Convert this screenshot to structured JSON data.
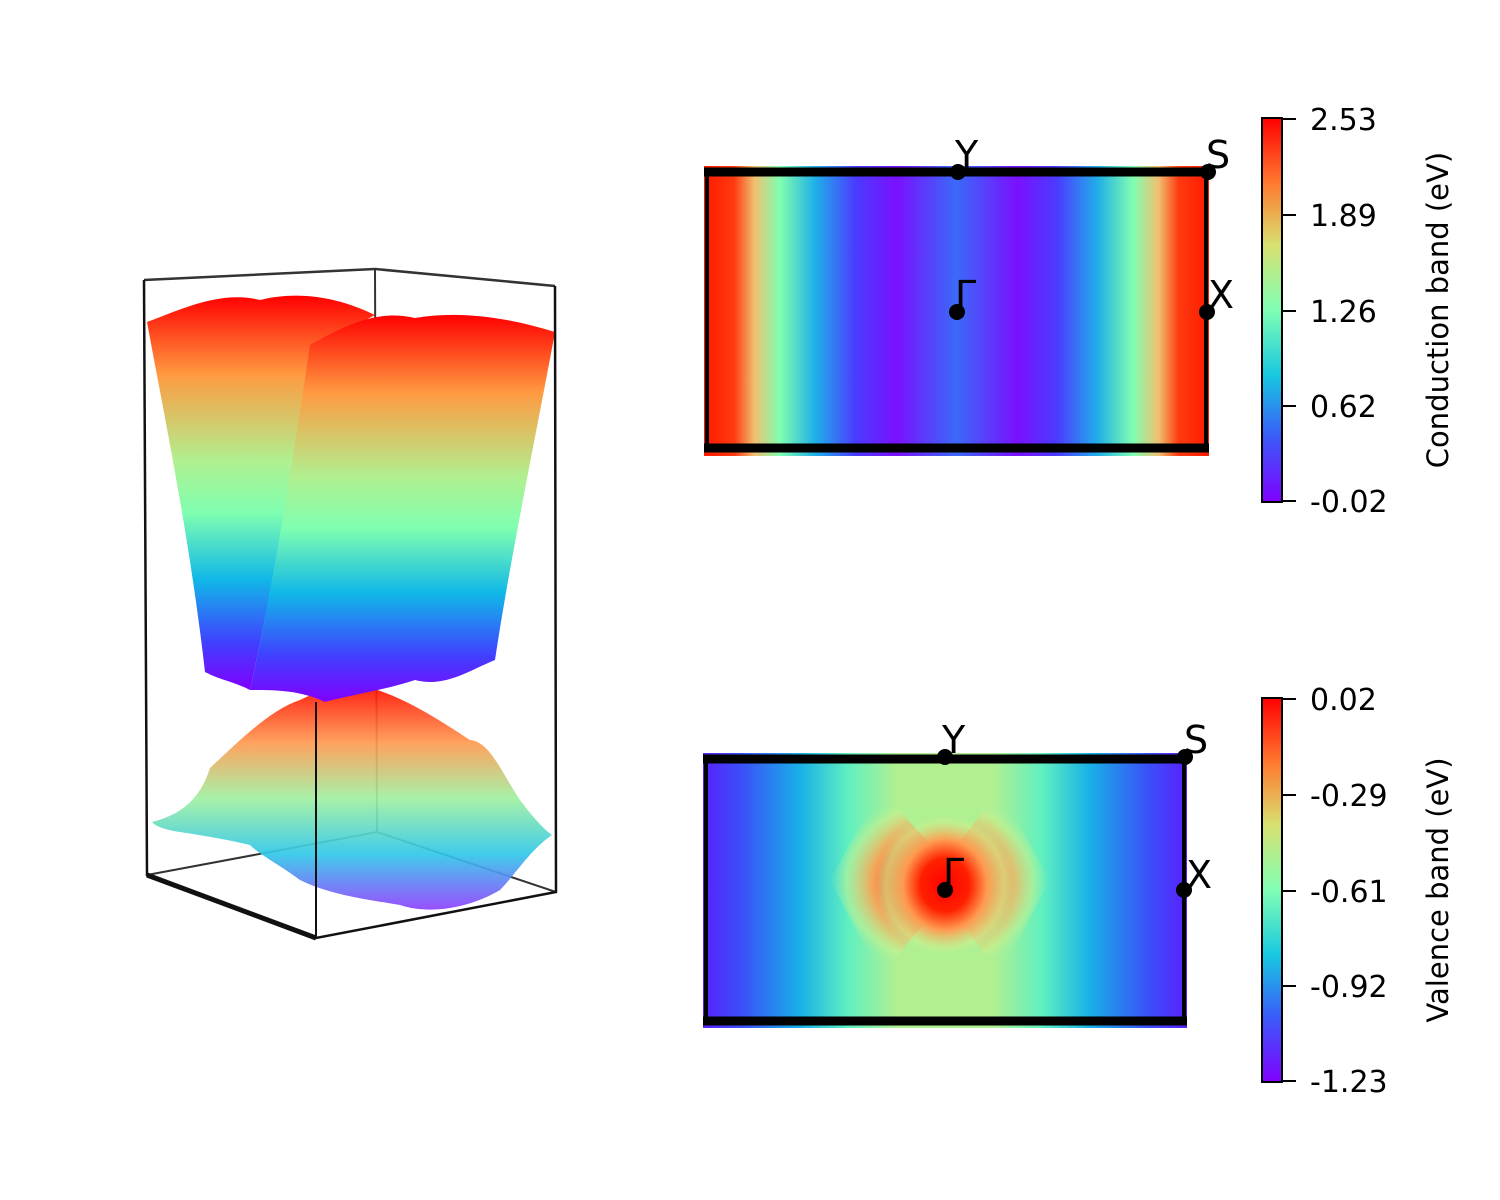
{
  "chart_data": [
    {
      "type": "surface3d",
      "description_panel": "left",
      "series": [
        {
          "colormap": "rainbow",
          "band": "conduction"
        },
        {
          "colormap": "rainbow",
          "band": "valence"
        }
      ]
    },
    {
      "type": "heatmap",
      "colormap": "rainbow",
      "band": "conduction",
      "point_labels": [
        "Y",
        "S",
        "Γ",
        "X"
      ],
      "colorbar": {
        "label": "Conduction band (eV)",
        "ticks": [
          "2.53",
          "1.89",
          "1.26",
          "0.62",
          "-0.02"
        ],
        "range": [
          -0.02,
          2.53
        ]
      }
    },
    {
      "type": "heatmap",
      "colormap": "rainbow",
      "band": "valence",
      "point_labels": [
        "Y",
        "S",
        "Γ",
        "X"
      ],
      "colorbar": {
        "label": "Valence band (eV)",
        "ticks": [
          "0.02",
          "-0.29",
          "-0.61",
          "-0.92",
          "-1.23"
        ],
        "range": [
          -1.23,
          0.02
        ]
      }
    }
  ]
}
